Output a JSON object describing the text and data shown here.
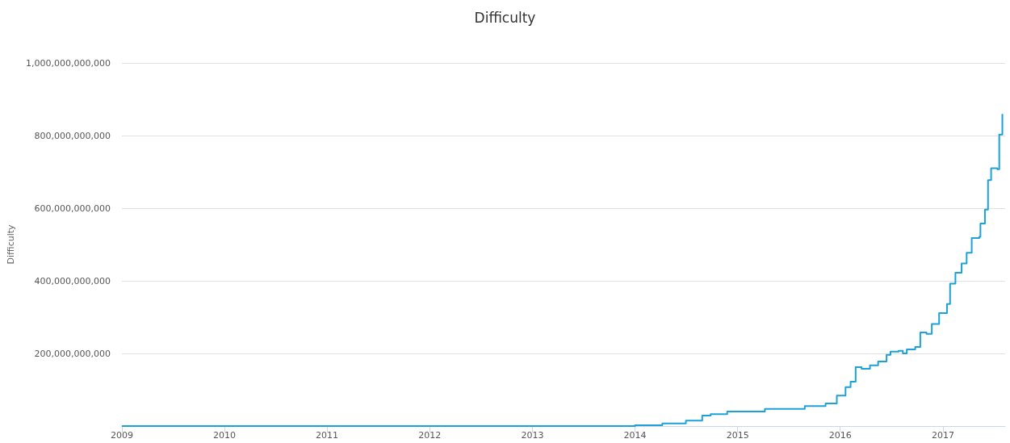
{
  "chart_data": {
    "type": "step",
    "title": "Difficulty",
    "ylabel": "Difficulty",
    "x": [
      "2009-01-03",
      "2013-01-01",
      "2013-10-01",
      "2014-01-01",
      "2014-04-08",
      "2014-07-01",
      "2014-08-28",
      "2014-09-27",
      "2014-11-25",
      "2015-01-01",
      "2015-04-08",
      "2015-08-28",
      "2015-11-10",
      "2015-12-20",
      "2016-01-20",
      "2016-02-07",
      "2016-02-25",
      "2016-03-17",
      "2016-04-16",
      "2016-05-15",
      "2016-06-14",
      "2016-06-28",
      "2016-07-27",
      "2016-08-11",
      "2016-08-25",
      "2016-09-24",
      "2016-10-12",
      "2016-11-03",
      "2016-11-22",
      "2016-12-18",
      "2017-01-15",
      "2017-01-26",
      "2017-02-14",
      "2017-03-08",
      "2017-03-26",
      "2017-04-13",
      "2017-05-10",
      "2017-05-14",
      "2017-05-30",
      "2017-06-10",
      "2017-06-21",
      "2017-07-13",
      "2017-07-20",
      "2017-07-31"
    ],
    "series": [
      {
        "color": "#1da1d6",
        "values": [
          0,
          0,
          0,
          2000000000,
          7000000000,
          15000000000,
          29000000000,
          33000000000,
          40000000000,
          40000000000,
          47000000000,
          55000000000,
          62000000000,
          84000000000,
          107000000000,
          122000000000,
          162000000000,
          158000000000,
          167000000000,
          178000000000,
          196000000000,
          205000000000,
          207000000000,
          200000000000,
          211000000000,
          218000000000,
          258000000000,
          254000000000,
          281000000000,
          311000000000,
          336000000000,
          392000000000,
          422000000000,
          448000000000,
          477000000000,
          518000000000,
          521000000000,
          558000000000,
          596000000000,
          677000000000,
          710000000000,
          707000000000,
          803000000000,
          858000000000
        ]
      }
    ],
    "xlim": [
      "2009-01-01",
      "2017-08-10"
    ],
    "xticks": [
      {
        "value": "2009-01-01",
        "label": "2009"
      },
      {
        "value": "2010-01-01",
        "label": "2010"
      },
      {
        "value": "2011-01-01",
        "label": "2011"
      },
      {
        "value": "2012-01-01",
        "label": "2012"
      },
      {
        "value": "2013-01-01",
        "label": "2013"
      },
      {
        "value": "2014-01-01",
        "label": "2014"
      },
      {
        "value": "2015-01-01",
        "label": "2015"
      },
      {
        "value": "2016-01-01",
        "label": "2016"
      },
      {
        "value": "2017-01-01",
        "label": "2017"
      }
    ],
    "ylim": [
      0,
      1000000000000
    ],
    "yticks": [
      {
        "value": 0,
        "label": null
      },
      {
        "value": 200000000000,
        "label": "200,000,000,000"
      },
      {
        "value": 400000000000,
        "label": "400,000,000,000"
      },
      {
        "value": 600000000000,
        "label": "600,000,000,000"
      },
      {
        "value": 800000000000,
        "label": "800,000,000,000"
      },
      {
        "value": 1000000000000,
        "label": "1,000,000,000,000"
      }
    ],
    "grid": "y",
    "marker": "none",
    "line_style": "solid"
  }
}
